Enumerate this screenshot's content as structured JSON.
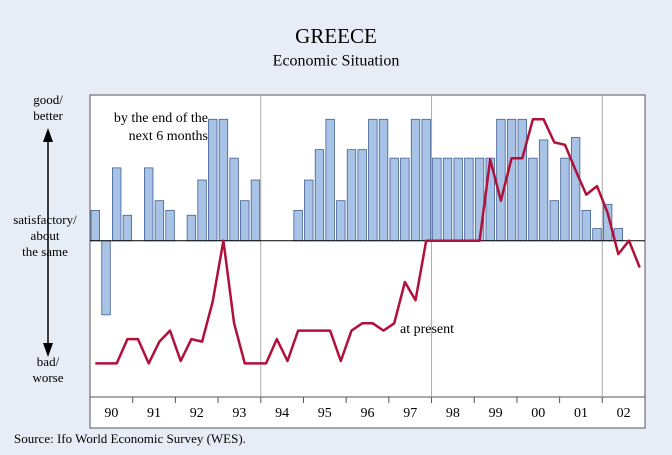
{
  "chart_data": {
    "type": "bar_line",
    "title": "GREECE",
    "subtitle": "Economic Situation",
    "axis_labels": {
      "top": "good/\nbetter",
      "middle": "satisfactory/\nabout\nthe same",
      "bottom": "bad/\nworse"
    },
    "source": "Source: Ifo World Economic Survey (WES).",
    "categories": [
      null,
      "90",
      null,
      null,
      null,
      "91",
      null,
      null,
      null,
      "92",
      null,
      null,
      null,
      "93",
      null,
      null,
      null,
      "94",
      null,
      null,
      null,
      "95",
      null,
      null,
      null,
      "96",
      null,
      null,
      null,
      "97",
      null,
      null,
      null,
      "98",
      null,
      null,
      null,
      "99",
      null,
      null,
      null,
      "00",
      null,
      null,
      null,
      "01",
      null,
      null,
      null,
      "02",
      null,
      null
    ],
    "ylim": [
      -127,
      120
    ],
    "series": [
      {
        "name": "by the end of the\nnext 6 months",
        "type": "bar",
        "color": "#a9c3e6",
        "stroke": "#3f5f95",
        "values": [
          25,
          -61,
          60,
          21,
          0,
          60,
          33,
          25,
          0,
          21,
          50,
          100,
          100,
          68,
          33,
          50,
          0,
          0,
          0,
          25,
          50,
          75,
          100,
          33,
          75,
          75,
          100,
          100,
          68,
          68,
          100,
          100,
          68,
          68,
          68,
          68,
          68,
          68,
          100,
          100,
          100,
          68,
          83,
          33,
          68,
          85,
          25,
          10,
          30,
          10,
          null,
          null
        ]
      },
      {
        "name": "at present",
        "type": "line",
        "color": "#b0103a",
        "values": [
          -101,
          -101,
          -101,
          -81,
          -81,
          -101,
          -83,
          -74,
          -99,
          -81,
          -83,
          -50,
          0,
          -68,
          -101,
          -101,
          -101,
          -81,
          -99,
          -74,
          -74,
          -74,
          -74,
          -99,
          -74,
          -68,
          -68,
          -74,
          -68,
          -34,
          -49,
          0,
          0,
          0,
          0,
          0,
          0,
          67,
          33,
          68,
          68,
          100,
          100,
          81,
          79,
          58,
          38,
          45,
          23,
          -11,
          0,
          -22
        ]
      }
    ]
  }
}
